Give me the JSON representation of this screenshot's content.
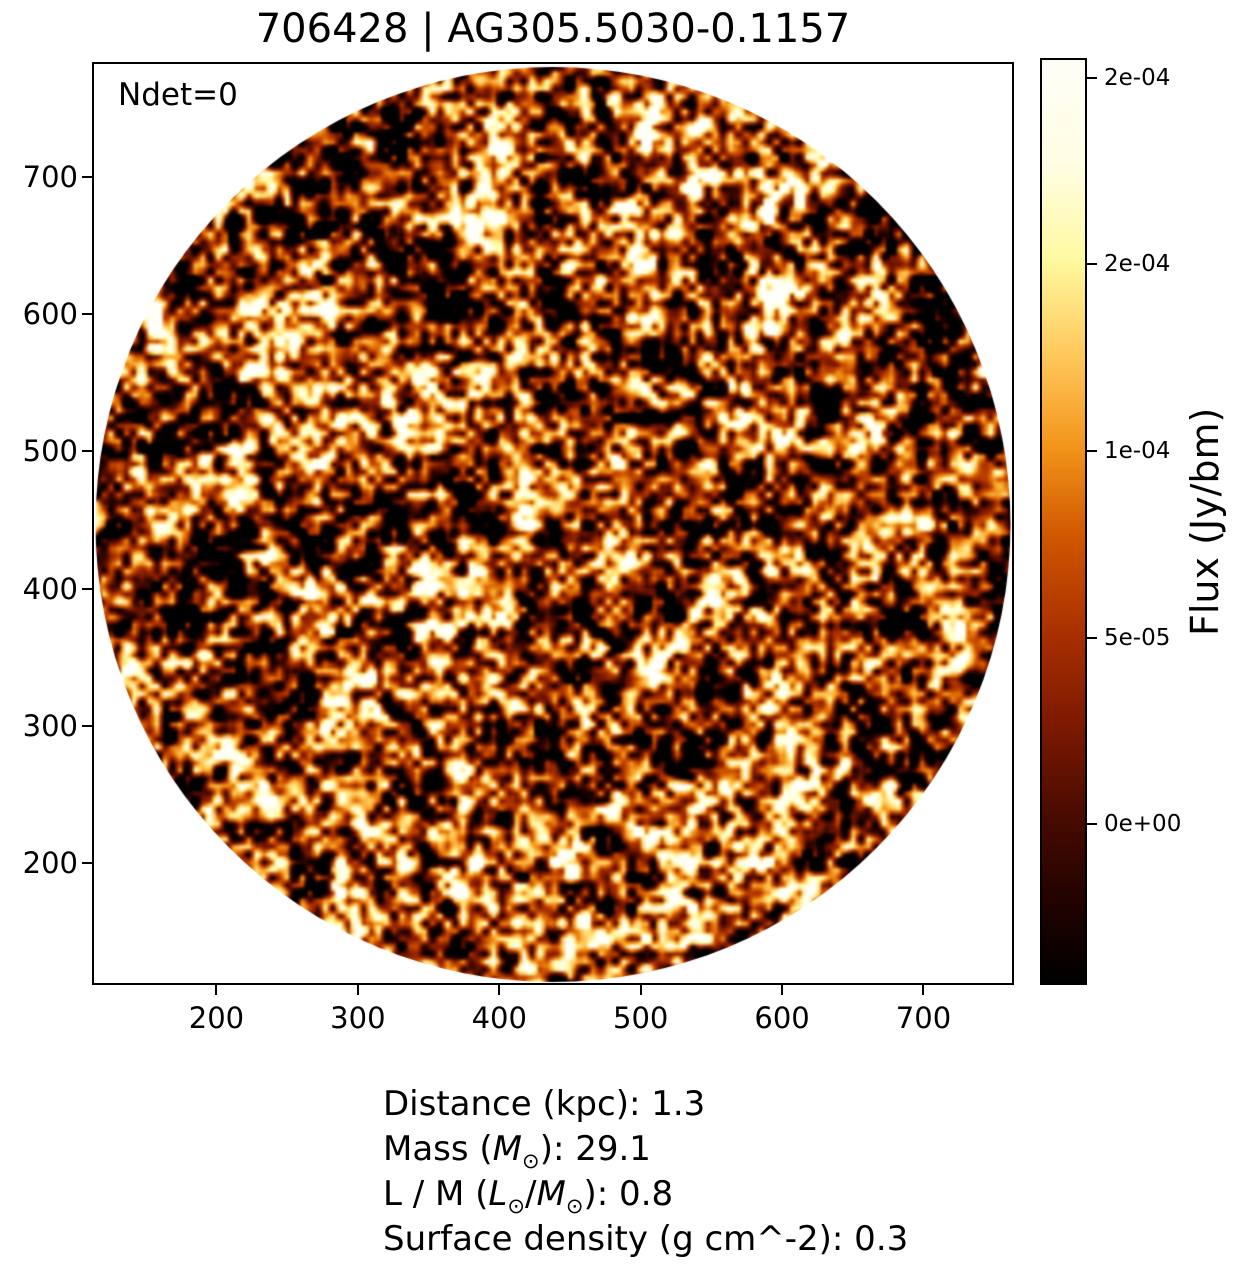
{
  "figure": {
    "title": "706428 | AG305.5030-0.1157",
    "annotation": "Ndet=0"
  },
  "info_lines": [
    {
      "name": "distance",
      "segments": [
        {
          "t": "Distance (kpc): 1.3"
        }
      ]
    },
    {
      "name": "mass",
      "segments": [
        {
          "t": "Mass ("
        },
        {
          "t": "M",
          "s": "i"
        },
        {
          "t": "⊙",
          "s": "sub"
        },
        {
          "t": "): 29.1"
        }
      ]
    },
    {
      "name": "l-over-m",
      "segments": [
        {
          "t": "L / M ("
        },
        {
          "t": "L",
          "s": "i"
        },
        {
          "t": "⊙",
          "s": "sub"
        },
        {
          "t": "/"
        },
        {
          "t": "M",
          "s": "i"
        },
        {
          "t": "⊙",
          "s": "sub"
        },
        {
          "t": "): 0.8"
        }
      ]
    },
    {
      "name": "surface-density",
      "segments": [
        {
          "t": "Surface density (g cm^-2): 0.3"
        }
      ]
    }
  ],
  "chart_data": {
    "type": "heatmap",
    "title": "706428 | AG305.5030-0.1157",
    "annotation": "Ndet=0",
    "description": "Circular-masked radio continuum flux cutout rendered as hot-colormap speckle noise; region outside circular field of view is white",
    "xlabel": "",
    "ylabel": "",
    "x_ticks": [
      200,
      300,
      400,
      500,
      600,
      700
    ],
    "y_ticks": [
      700,
      600,
      500,
      400,
      300,
      200
    ],
    "xlim": [
      112,
      764
    ],
    "ylim": [
      111,
      784
    ],
    "grid": false,
    "circle_mask": {
      "cx": 438,
      "cy": 447.5,
      "r": 336
    },
    "colorbar": {
      "label": "Flux (Jy/bm)",
      "side": "right",
      "vmin": -4.3e-05,
      "vmax": 0.0002053,
      "tick_values": [
        0.0002,
        0.00015,
        0.0001,
        5e-05,
        0.0
      ],
      "tick_labels": [
        "2e-04",
        "2e-04",
        "1e-04",
        "5e-05",
        "0e+00"
      ],
      "colormap_stops": [
        {
          "p": 0.0,
          "c": "#000000"
        },
        {
          "p": 0.075,
          "c": "#1c0200"
        },
        {
          "p": 0.173,
          "c": "#450a00"
        },
        {
          "p": 0.275,
          "c": "#7a1800"
        },
        {
          "p": 0.377,
          "c": "#a82f00"
        },
        {
          "p": 0.48,
          "c": "#cf5500"
        },
        {
          "p": 0.58,
          "c": "#f2941a"
        },
        {
          "p": 0.67,
          "c": "#ffc355"
        },
        {
          "p": 0.784,
          "c": "#fff9a0"
        },
        {
          "p": 0.88,
          "c": "#fffde0"
        },
        {
          "p": 1.0,
          "c": "#fffef8"
        }
      ]
    },
    "stats": {
      "ndet": 0,
      "distance_kpc": 1.3,
      "mass_msun": 29.1,
      "l_over_m_lsun_per_msun": 0.8,
      "surface_density_g_cm2": 0.3
    }
  }
}
